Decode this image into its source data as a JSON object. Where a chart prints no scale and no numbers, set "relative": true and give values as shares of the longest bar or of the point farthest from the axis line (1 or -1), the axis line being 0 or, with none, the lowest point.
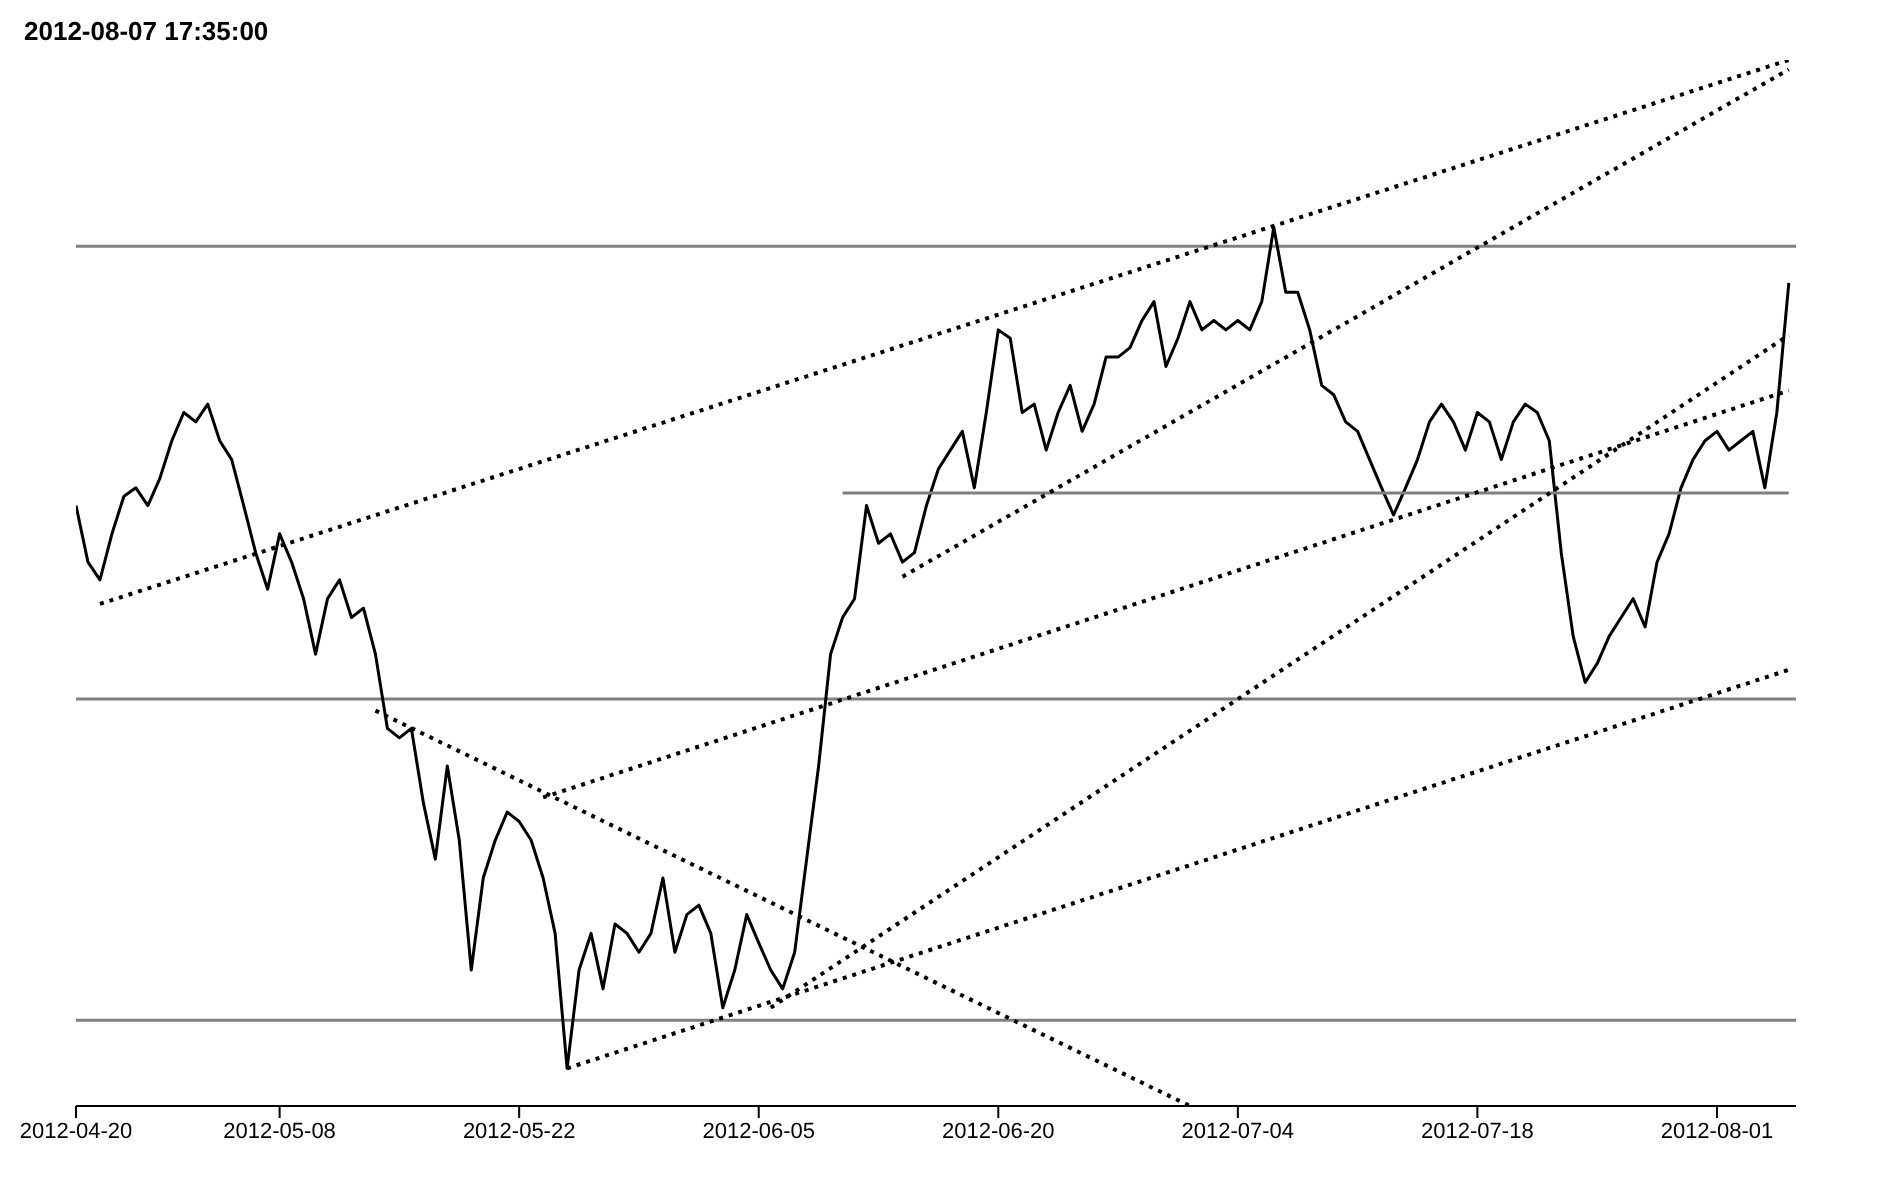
{
  "chart_data": {
    "type": "line",
    "title": "2012-08-07 17:35:00",
    "relative": true,
    "marker": "none",
    "tick_labels": "x",
    "categories": [
      "2012-04-20",
      null,
      null,
      null,
      null,
      null,
      null,
      null,
      null,
      null,
      null,
      null,
      null,
      null,
      null,
      null,
      null,
      "2012-05-08",
      null,
      null,
      null,
      null,
      null,
      null,
      null,
      null,
      null,
      null,
      null,
      null,
      null,
      null,
      null,
      null,
      null,
      null,
      null,
      "2012-05-22",
      null,
      null,
      null,
      null,
      null,
      null,
      null,
      null,
      null,
      null,
      null,
      null,
      null,
      null,
      null,
      null,
      null,
      null,
      null,
      "2012-06-05",
      null,
      null,
      null,
      null,
      null,
      null,
      null,
      null,
      null,
      null,
      null,
      null,
      null,
      null,
      null,
      null,
      null,
      null,
      null,
      "2012-06-20",
      null,
      null,
      null,
      null,
      null,
      null,
      null,
      null,
      null,
      null,
      null,
      null,
      null,
      null,
      null,
      null,
      null,
      null,
      null,
      "2012-07-04",
      null,
      null,
      null,
      null,
      null,
      null,
      null,
      null,
      null,
      null,
      null,
      null,
      null,
      null,
      null,
      null,
      null,
      null,
      null,
      "2012-07-18",
      null,
      null,
      null,
      null,
      null,
      null,
      null,
      null,
      null,
      null,
      null,
      null,
      null,
      null,
      null,
      null,
      null,
      null,
      null,
      "2012-08-01",
      null,
      null,
      null,
      null,
      null,
      null
    ],
    "ref_lines": [
      {
        "axis": "y",
        "value": 0.822,
        "color": "#808080"
      },
      {
        "axis": "y",
        "value": 0.389,
        "color": "#808080"
      },
      {
        "axis": "y",
        "value": 0.082,
        "color": "#808080"
      }
    ],
    "series": [
      {
        "color": "#000000",
        "line_style": "solid",
        "values": [
          0.574,
          0.52,
          0.503,
          0.547,
          0.583,
          0.591,
          0.574,
          0.6,
          0.636,
          0.663,
          0.654,
          0.671,
          0.636,
          0.618,
          0.574,
          0.529,
          0.494,
          0.547,
          0.52,
          0.485,
          0.432,
          0.485,
          0.503,
          0.467,
          0.476,
          0.432,
          0.361,
          0.352,
          0.361,
          0.29,
          0.236,
          0.325,
          0.254,
          0.13,
          0.218,
          0.254,
          0.281,
          0.272,
          0.254,
          0.218,
          0.165,
          0.036,
          0.13,
          0.165,
          0.112,
          0.174,
          0.165,
          0.147,
          0.165,
          0.218,
          0.147,
          0.183,
          0.192,
          0.165,
          0.094,
          0.13,
          0.183,
          0.156,
          0.13,
          0.112,
          0.147,
          0.236,
          0.325,
          0.432,
          0.467,
          0.485,
          0.574,
          0.538,
          0.547,
          0.52,
          0.529,
          0.574,
          0.609,
          0.627,
          0.645,
          0.591,
          0.663,
          0.742,
          0.734,
          0.663,
          0.671,
          0.627,
          0.663,
          0.689,
          0.645,
          0.671,
          0.716,
          0.716,
          0.725,
          0.751,
          0.769,
          0.707,
          0.734,
          0.769,
          0.742,
          0.751,
          0.742,
          0.751,
          0.742,
          0.769,
          0.84,
          0.778,
          0.778,
          0.742,
          0.689,
          0.68,
          0.654,
          0.645,
          0.618,
          0.591,
          0.565,
          0.591,
          0.618,
          0.654,
          0.671,
          0.654,
          0.627,
          0.663,
          0.654,
          0.618,
          0.654,
          0.671,
          0.663,
          0.636,
          0.529,
          0.449,
          0.405,
          0.423,
          0.449,
          0.467,
          0.485,
          0.458,
          0.52,
          0.547,
          0.591,
          0.618,
          0.636,
          0.645,
          0.627,
          0.636,
          0.645,
          0.591,
          0.663,
          0.787
        ]
      },
      {
        "color": "#808080",
        "line_style": "solid",
        "values": [
          null,
          null,
          null,
          null,
          null,
          null,
          null,
          null,
          null,
          null,
          null,
          null,
          null,
          null,
          null,
          null,
          null,
          null,
          null,
          null,
          null,
          null,
          null,
          null,
          null,
          null,
          null,
          null,
          null,
          null,
          null,
          null,
          null,
          null,
          null,
          null,
          null,
          null,
          null,
          null,
          null,
          null,
          null,
          null,
          null,
          null,
          null,
          null,
          null,
          null,
          null,
          null,
          null,
          null,
          null,
          null,
          null,
          null,
          null,
          null,
          null,
          null,
          null,
          null,
          0.586,
          null,
          null,
          null,
          null,
          null,
          null,
          null,
          null,
          null,
          null,
          null,
          null,
          null,
          null,
          null,
          null,
          null,
          null,
          null,
          null,
          null,
          null,
          null,
          null,
          null,
          null,
          null,
          null,
          null,
          null,
          null,
          null,
          null,
          null,
          null,
          null,
          null,
          null,
          null,
          null,
          null,
          null,
          null,
          null,
          null,
          null,
          null,
          null,
          null,
          null,
          null,
          null,
          null,
          null,
          null,
          null,
          null,
          null,
          null,
          null,
          null,
          null,
          null,
          null,
          null,
          null,
          null,
          null,
          null,
          null,
          null,
          null,
          null,
          null,
          null,
          null,
          null,
          null,
          0.586
        ]
      },
      {
        "color": "#000000",
        "line_style": "dotted",
        "values": [
          null,
          null,
          0.48,
          null,
          null,
          null,
          null,
          null,
          null,
          null,
          null,
          null,
          null,
          null,
          null,
          null,
          null,
          null,
          null,
          null,
          null,
          null,
          null,
          null,
          null,
          null,
          null,
          null,
          null,
          null,
          null,
          null,
          null,
          null,
          null,
          null,
          null,
          null,
          null,
          null,
          null,
          null,
          null,
          null,
          null,
          null,
          null,
          null,
          null,
          null,
          null,
          null,
          null,
          null,
          null,
          null,
          null,
          null,
          null,
          null,
          null,
          null,
          null,
          null,
          null,
          null,
          null,
          null,
          null,
          null,
          null,
          null,
          null,
          null,
          null,
          null,
          null,
          null,
          null,
          null,
          null,
          null,
          null,
          null,
          null,
          null,
          null,
          null,
          null,
          null,
          null,
          null,
          null,
          null,
          null,
          null,
          null,
          null,
          null,
          null,
          null,
          null,
          null,
          null,
          null,
          null,
          null,
          null,
          null,
          null,
          null,
          null,
          null,
          null,
          null,
          null,
          null,
          null,
          null,
          null,
          null,
          null,
          null,
          null,
          null,
          null,
          null,
          null,
          null,
          null,
          null,
          null,
          null,
          null,
          null,
          null,
          null,
          null,
          null,
          null,
          null,
          null,
          null,
          1
        ]
      },
      {
        "color": "#000000",
        "line_style": "dotted",
        "values": [
          null,
          null,
          null,
          null,
          null,
          null,
          null,
          null,
          null,
          null,
          null,
          null,
          null,
          null,
          null,
          null,
          null,
          null,
          null,
          null,
          null,
          null,
          null,
          null,
          null,
          null,
          null,
          null,
          null,
          null,
          null,
          null,
          null,
          null,
          null,
          null,
          null,
          null,
          null,
          null,
          null,
          null,
          null,
          null,
          null,
          null,
          null,
          null,
          null,
          null,
          null,
          null,
          null,
          null,
          null,
          null,
          null,
          null,
          null,
          null,
          null,
          null,
          null,
          null,
          null,
          null,
          null,
          null,
          null,
          0.506,
          null,
          null,
          null,
          null,
          null,
          null,
          null,
          null,
          null,
          null,
          null,
          null,
          null,
          null,
          null,
          null,
          null,
          null,
          null,
          null,
          null,
          null,
          null,
          null,
          null,
          null,
          null,
          null,
          null,
          null,
          null,
          null,
          null,
          null,
          null,
          null,
          null,
          null,
          null,
          null,
          null,
          null,
          null,
          null,
          null,
          null,
          null,
          null,
          null,
          null,
          null,
          null,
          null,
          null,
          null,
          null,
          null,
          null,
          null,
          null,
          null,
          null,
          null,
          null,
          null,
          null,
          null,
          null,
          null,
          null,
          null,
          null,
          null,
          0.991
        ]
      },
      {
        "color": "#000000",
        "line_style": "dotted",
        "values": [
          null,
          null,
          null,
          null,
          null,
          null,
          null,
          null,
          null,
          null,
          null,
          null,
          null,
          null,
          null,
          null,
          null,
          null,
          null,
          null,
          null,
          null,
          null,
          null,
          null,
          null,
          null,
          null,
          null,
          null,
          null,
          null,
          null,
          null,
          null,
          null,
          null,
          null,
          null,
          0.295,
          null,
          null,
          null,
          null,
          null,
          null,
          null,
          null,
          null,
          null,
          null,
          null,
          null,
          null,
          null,
          null,
          null,
          null,
          null,
          null,
          null,
          null,
          null,
          null,
          null,
          null,
          null,
          null,
          null,
          null,
          null,
          null,
          null,
          null,
          null,
          null,
          null,
          null,
          null,
          null,
          null,
          null,
          null,
          null,
          null,
          null,
          null,
          null,
          null,
          null,
          null,
          null,
          null,
          null,
          null,
          null,
          null,
          null,
          null,
          null,
          null,
          null,
          null,
          null,
          null,
          null,
          null,
          null,
          null,
          null,
          null,
          null,
          null,
          null,
          null,
          null,
          null,
          null,
          null,
          null,
          null,
          null,
          null,
          null,
          null,
          null,
          null,
          null,
          null,
          null,
          null,
          null,
          null,
          null,
          null,
          null,
          null,
          null,
          null,
          null,
          null,
          null,
          null,
          0.684
        ]
      },
      {
        "color": "#000000",
        "line_style": "dotted",
        "values": [
          null,
          null,
          null,
          null,
          null,
          null,
          null,
          null,
          null,
          null,
          null,
          null,
          null,
          null,
          null,
          null,
          null,
          null,
          null,
          null,
          null,
          null,
          null,
          null,
          null,
          null,
          null,
          null,
          null,
          null,
          null,
          null,
          null,
          null,
          null,
          null,
          null,
          null,
          null,
          null,
          null,
          null,
          null,
          null,
          null,
          null,
          null,
          null,
          null,
          null,
          null,
          null,
          null,
          null,
          null,
          null,
          null,
          null,
          0.094,
          null,
          null,
          null,
          null,
          null,
          null,
          null,
          null,
          null,
          null,
          null,
          null,
          null,
          null,
          null,
          null,
          null,
          null,
          null,
          null,
          null,
          null,
          null,
          null,
          null,
          null,
          null,
          null,
          null,
          null,
          null,
          null,
          null,
          null,
          null,
          null,
          null,
          null,
          null,
          null,
          null,
          null,
          null,
          null,
          null,
          null,
          null,
          null,
          null,
          null,
          null,
          null,
          null,
          null,
          null,
          null,
          null,
          null,
          null,
          null,
          null,
          null,
          null,
          null,
          null,
          null,
          null,
          null,
          null,
          null,
          null,
          null,
          null,
          null,
          null,
          null,
          null,
          null,
          null,
          null,
          null,
          null,
          null,
          null,
          0.737
        ]
      },
      {
        "color": "#000000",
        "line_style": "dotted",
        "values": [
          null,
          null,
          null,
          null,
          null,
          null,
          null,
          null,
          null,
          null,
          null,
          null,
          null,
          null,
          null,
          null,
          null,
          null,
          null,
          null,
          null,
          null,
          null,
          null,
          null,
          null,
          null,
          null,
          null,
          null,
          null,
          null,
          null,
          null,
          null,
          null,
          null,
          null,
          null,
          null,
          null,
          0.036,
          null,
          null,
          null,
          null,
          null,
          null,
          null,
          null,
          null,
          null,
          null,
          null,
          null,
          null,
          null,
          null,
          null,
          null,
          null,
          null,
          null,
          null,
          null,
          null,
          null,
          null,
          null,
          null,
          null,
          null,
          null,
          null,
          null,
          null,
          null,
          null,
          null,
          null,
          null,
          null,
          null,
          null,
          null,
          null,
          null,
          null,
          null,
          null,
          null,
          null,
          null,
          null,
          null,
          null,
          null,
          null,
          null,
          null,
          null,
          null,
          null,
          null,
          null,
          null,
          null,
          null,
          null,
          null,
          null,
          null,
          null,
          null,
          null,
          null,
          null,
          null,
          null,
          null,
          null,
          null,
          null,
          null,
          null,
          null,
          null,
          null,
          null,
          null,
          null,
          null,
          null,
          null,
          null,
          null,
          null,
          null,
          null,
          null,
          null,
          null,
          null,
          0.417
        ]
      },
      {
        "color": "#000000",
        "line_style": "dotted",
        "values": [
          null,
          null,
          null,
          null,
          null,
          null,
          null,
          null,
          null,
          null,
          null,
          null,
          null,
          null,
          null,
          null,
          null,
          null,
          null,
          null,
          null,
          null,
          null,
          null,
          null,
          0.378,
          null,
          null,
          null,
          null,
          null,
          null,
          null,
          null,
          null,
          null,
          null,
          null,
          null,
          null,
          null,
          null,
          null,
          null,
          null,
          null,
          null,
          null,
          null,
          null,
          null,
          null,
          null,
          null,
          null,
          null,
          null,
          null,
          null,
          null,
          null,
          null,
          null,
          null,
          null,
          null,
          null,
          null,
          null,
          null,
          null,
          null,
          null,
          null,
          null,
          null,
          null,
          null,
          null,
          null,
          null,
          null,
          null,
          null,
          null,
          null,
          null,
          null,
          null,
          null,
          null,
          null,
          null,
          0,
          null,
          null,
          null,
          null,
          null,
          null,
          null,
          null,
          null,
          null,
          null,
          null,
          null,
          null,
          null,
          null,
          null,
          null,
          null,
          null,
          null,
          null,
          null,
          null,
          null,
          null,
          null,
          null,
          null,
          null,
          null,
          null,
          null,
          null,
          null,
          null,
          null,
          null,
          null,
          null,
          null,
          null,
          null,
          null,
          null,
          null,
          null,
          null,
          null,
          null
        ]
      }
    ]
  }
}
